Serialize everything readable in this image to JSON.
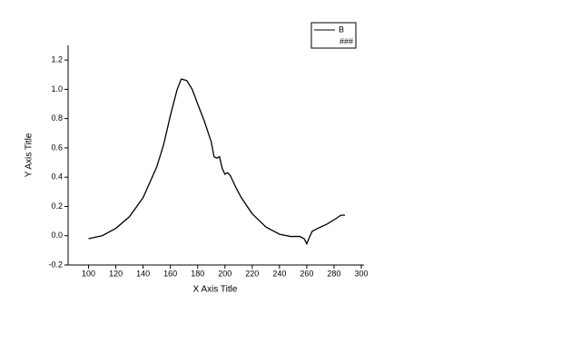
{
  "chart_data": {
    "type": "line",
    "x_label": "X Axis Title",
    "y_label": "Y Axis Title",
    "x": [
      100,
      110,
      120,
      130,
      140,
      150,
      155,
      160,
      165,
      168,
      172,
      176,
      180,
      185,
      190,
      192,
      194,
      196,
      198,
      200,
      202,
      204,
      208,
      212,
      220,
      230,
      240,
      248,
      255,
      258,
      260,
      262,
      264,
      268,
      275,
      282,
      285,
      288
    ],
    "series": [
      {
        "name": "B",
        "color": "#000000",
        "values": [
          -0.02,
          0.0,
          0.05,
          0.13,
          0.26,
          0.47,
          0.62,
          0.82,
          1.0,
          1.07,
          1.06,
          1.0,
          0.9,
          0.78,
          0.64,
          0.54,
          0.53,
          0.54,
          0.46,
          0.42,
          0.43,
          0.41,
          0.33,
          0.26,
          0.15,
          0.06,
          0.01,
          -0.005,
          -0.005,
          -0.02,
          -0.055,
          -0.01,
          0.03,
          0.05,
          0.08,
          0.12,
          0.14,
          0.14
        ]
      }
    ],
    "legend_extra": "###",
    "xlim": [
      85,
      302
    ],
    "ylim": [
      -0.2,
      1.3
    ],
    "xticks": [
      100,
      120,
      140,
      160,
      180,
      200,
      220,
      240,
      260,
      280,
      300
    ],
    "yticks": [
      -0.2,
      {
        "value": 0,
        "label": "0.0"
      },
      0.2,
      0.4,
      0.6,
      0.8,
      {
        "value": 1,
        "label": "1.0"
      },
      1.2
    ],
    "legend": "top-right",
    "grid": false
  }
}
